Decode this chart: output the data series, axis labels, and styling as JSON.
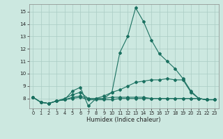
{
  "xlabel": "Humidex (Indice chaleur)",
  "x": [
    0,
    1,
    2,
    3,
    4,
    5,
    6,
    7,
    8,
    9,
    10,
    11,
    12,
    13,
    14,
    15,
    16,
    17,
    18,
    19,
    20,
    21,
    22,
    23
  ],
  "series": [
    [
      8.1,
      7.7,
      7.6,
      7.8,
      7.9,
      8.6,
      8.9,
      7.4,
      8.0,
      8.0,
      8.5,
      11.7,
      13.0,
      15.3,
      14.2,
      12.7,
      11.6,
      11.0,
      10.4,
      9.6,
      8.6,
      8.0,
      7.9,
      7.9
    ],
    [
      8.1,
      7.7,
      7.6,
      7.8,
      8.0,
      8.3,
      8.5,
      8.0,
      8.0,
      8.2,
      8.5,
      8.7,
      9.0,
      9.3,
      9.4,
      9.5,
      9.5,
      9.6,
      9.5,
      9.5,
      8.5,
      8.0,
      7.9,
      7.9
    ],
    [
      8.1,
      7.7,
      7.6,
      7.8,
      7.9,
      8.1,
      8.2,
      8.0,
      8.0,
      8.0,
      8.1,
      8.1,
      8.1,
      8.1,
      8.1,
      8.0,
      8.0,
      8.0,
      8.0,
      8.0,
      8.0,
      8.0,
      7.9,
      7.9
    ],
    [
      8.1,
      7.7,
      7.6,
      7.8,
      7.9,
      8.0,
      8.1,
      7.9,
      7.9,
      7.9,
      7.9,
      8.0,
      8.0,
      8.0,
      8.0,
      8.0,
      8.0,
      8.0,
      8.0,
      8.0,
      8.0,
      8.0,
      7.9,
      7.9
    ]
  ],
  "line_color": "#1a7060",
  "bg_color": "#cce8e0",
  "grid_color": "#aaccc4",
  "ylim": [
    7.2,
    15.6
  ],
  "yticks": [
    8,
    9,
    10,
    11,
    12,
    13,
    14,
    15
  ],
  "xlim": [
    -0.5,
    23.5
  ],
  "xticks": [
    0,
    1,
    2,
    3,
    4,
    5,
    6,
    7,
    8,
    9,
    10,
    11,
    12,
    13,
    14,
    15,
    16,
    17,
    18,
    19,
    20,
    21,
    22,
    23
  ]
}
